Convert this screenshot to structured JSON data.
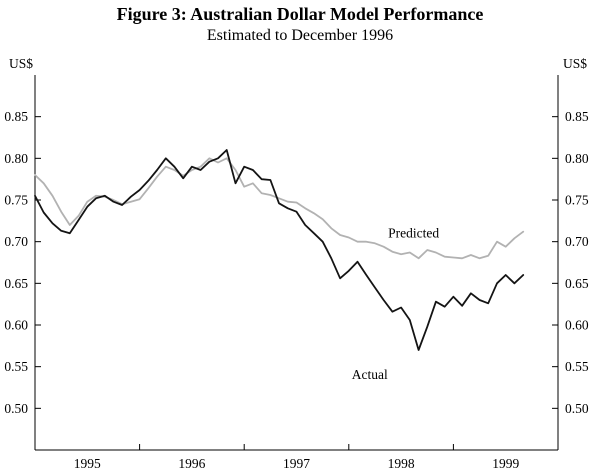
{
  "chart_data": {
    "type": "line",
    "title": "Figure 3: Australian Dollar Model Performance",
    "subtitle": "Estimated to December 1996",
    "ylabel": "US$",
    "ylim": [
      0.45,
      0.9
    ],
    "yticks": [
      0.5,
      0.55,
      0.6,
      0.65,
      0.7,
      0.75,
      0.8,
      0.85
    ],
    "xlim": [
      1995.0,
      2000.0
    ],
    "xticks": [
      1995,
      1996,
      1997,
      1998,
      1999
    ],
    "xtick_labels": [
      "1995",
      "1996",
      "1997",
      "1998",
      "1999"
    ],
    "grid": false,
    "legend": "in-plot text labels",
    "x": [
      1995.0,
      1995.083,
      1995.167,
      1995.25,
      1995.333,
      1995.417,
      1995.5,
      1995.583,
      1995.667,
      1995.75,
      1995.833,
      1995.917,
      1996.0,
      1996.083,
      1996.167,
      1996.25,
      1996.333,
      1996.417,
      1996.5,
      1996.583,
      1996.667,
      1996.75,
      1996.833,
      1996.917,
      1997.0,
      1997.083,
      1997.167,
      1997.25,
      1997.333,
      1997.417,
      1997.5,
      1997.583,
      1997.667,
      1997.75,
      1997.833,
      1997.917,
      1998.0,
      1998.083,
      1998.167,
      1998.25,
      1998.333,
      1998.417,
      1998.5,
      1998.583,
      1998.667,
      1998.75,
      1998.833,
      1998.917,
      1999.0,
      1999.083,
      1999.167,
      1999.25,
      1999.333,
      1999.417,
      1999.5,
      1999.583,
      1999.667
    ],
    "series": [
      {
        "name": "Predicted",
        "color": "#b2b2b2",
        "values": [
          0.78,
          0.77,
          0.755,
          0.736,
          0.72,
          0.731,
          0.748,
          0.755,
          0.754,
          0.75,
          0.745,
          0.748,
          0.751,
          0.764,
          0.778,
          0.79,
          0.786,
          0.779,
          0.786,
          0.79,
          0.8,
          0.795,
          0.8,
          0.786,
          0.766,
          0.77,
          0.758,
          0.756,
          0.752,
          0.748,
          0.747,
          0.74,
          0.734,
          0.727,
          0.716,
          0.708,
          0.705,
          0.7,
          0.7,
          0.698,
          0.694,
          0.688,
          0.685,
          0.687,
          0.68,
          0.69,
          0.687,
          0.682,
          0.681,
          0.68,
          0.684,
          0.68,
          0.683,
          0.7,
          0.694,
          0.704,
          0.712
        ]
      },
      {
        "name": "Actual",
        "color": "#141414",
        "values": [
          0.755,
          0.735,
          0.722,
          0.713,
          0.71,
          0.726,
          0.742,
          0.752,
          0.755,
          0.748,
          0.744,
          0.754,
          0.762,
          0.773,
          0.786,
          0.8,
          0.79,
          0.776,
          0.79,
          0.786,
          0.796,
          0.8,
          0.81,
          0.77,
          0.79,
          0.786,
          0.775,
          0.774,
          0.746,
          0.74,
          0.736,
          0.72,
          0.71,
          0.7,
          0.68,
          0.656,
          0.665,
          0.676,
          0.66,
          0.645,
          0.63,
          0.616,
          0.621,
          0.606,
          0.57,
          0.598,
          0.628,
          0.622,
          0.634,
          0.623,
          0.638,
          0.63,
          0.626,
          0.65,
          0.66,
          0.65,
          0.66
        ]
      }
    ],
    "annotations": [
      {
        "text": "Predicted",
        "x": 1998.62,
        "y": 0.705
      },
      {
        "text": "Actual",
        "x": 1998.2,
        "y": 0.535
      }
    ]
  }
}
